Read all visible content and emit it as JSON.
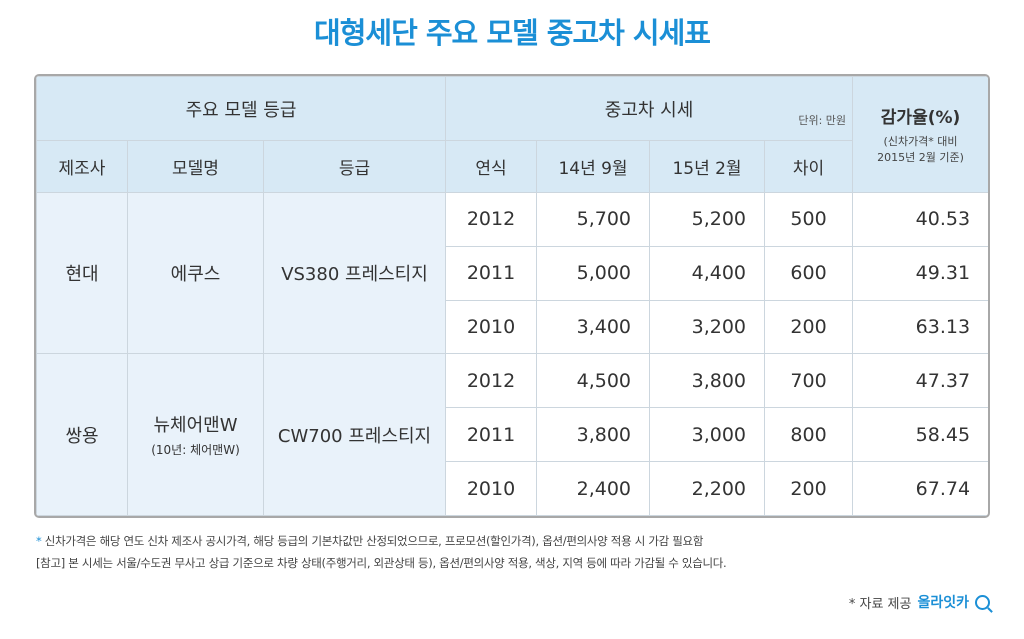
{
  "title": "대형세단 주요 모델 중고차 시세표",
  "header": {
    "group_model": "주요 모델 등급",
    "group_price": "중고차 시세",
    "unit": "단위: 만원",
    "rate_title": "감가율(%)",
    "rate_sub1": "(신차가격* 대비",
    "rate_sub2": "2015년 2월 기준)",
    "col_maker": "제조사",
    "col_model": "모델명",
    "col_grade": "등급",
    "col_year": "연식",
    "col_sep14": "14년 9월",
    "col_feb15": "15년 2월",
    "col_diff": "차이"
  },
  "groups": [
    {
      "maker": "현대",
      "model": "에쿠스",
      "model_sub": "",
      "grade": "VS380 프레스티지",
      "rows": [
        {
          "year": "2012",
          "sep14": "5,700",
          "feb15": "5,200",
          "diff": "500",
          "rate": "40.53"
        },
        {
          "year": "2011",
          "sep14": "5,000",
          "feb15": "4,400",
          "diff": "600",
          "rate": "49.31"
        },
        {
          "year": "2010",
          "sep14": "3,400",
          "feb15": "3,200",
          "diff": "200",
          "rate": "63.13"
        }
      ]
    },
    {
      "maker": "쌍용",
      "model": "뉴체어맨W",
      "model_sub": "(10년: 체어맨W)",
      "grade": "CW700 프레스티지",
      "rows": [
        {
          "year": "2012",
          "sep14": "4,500",
          "feb15": "3,800",
          "diff": "700",
          "rate": "47.37"
        },
        {
          "year": "2011",
          "sep14": "3,800",
          "feb15": "3,000",
          "diff": "800",
          "rate": "58.45"
        },
        {
          "year": "2010",
          "sep14": "2,400",
          "feb15": "2,200",
          "diff": "200",
          "rate": "67.74"
        }
      ]
    }
  ],
  "notes": {
    "note1_star": "*",
    "note1": " 신차가격은 해당 연도 신차 제조사 공시가격, 해당 등급의 기본차값만 산정되었으므로, 프로모션(할인가격), 옵션/편의사양 적용 시 가감 필요함",
    "note2": "[참고] 본 시세는 서울/수도권 무사고 상급 기준으로 차량 상태(주행거리, 외관상태 등), 옵션/편의사양 적용, 색상, 지역 등에 따라 가감될 수 있습니다."
  },
  "credit": {
    "label": "* 자료 제공",
    "brand": "올라잇카"
  },
  "colors": {
    "accent": "#1b8fd6",
    "header_bg": "#d7e9f5",
    "side_bg": "#e9f2fa"
  }
}
